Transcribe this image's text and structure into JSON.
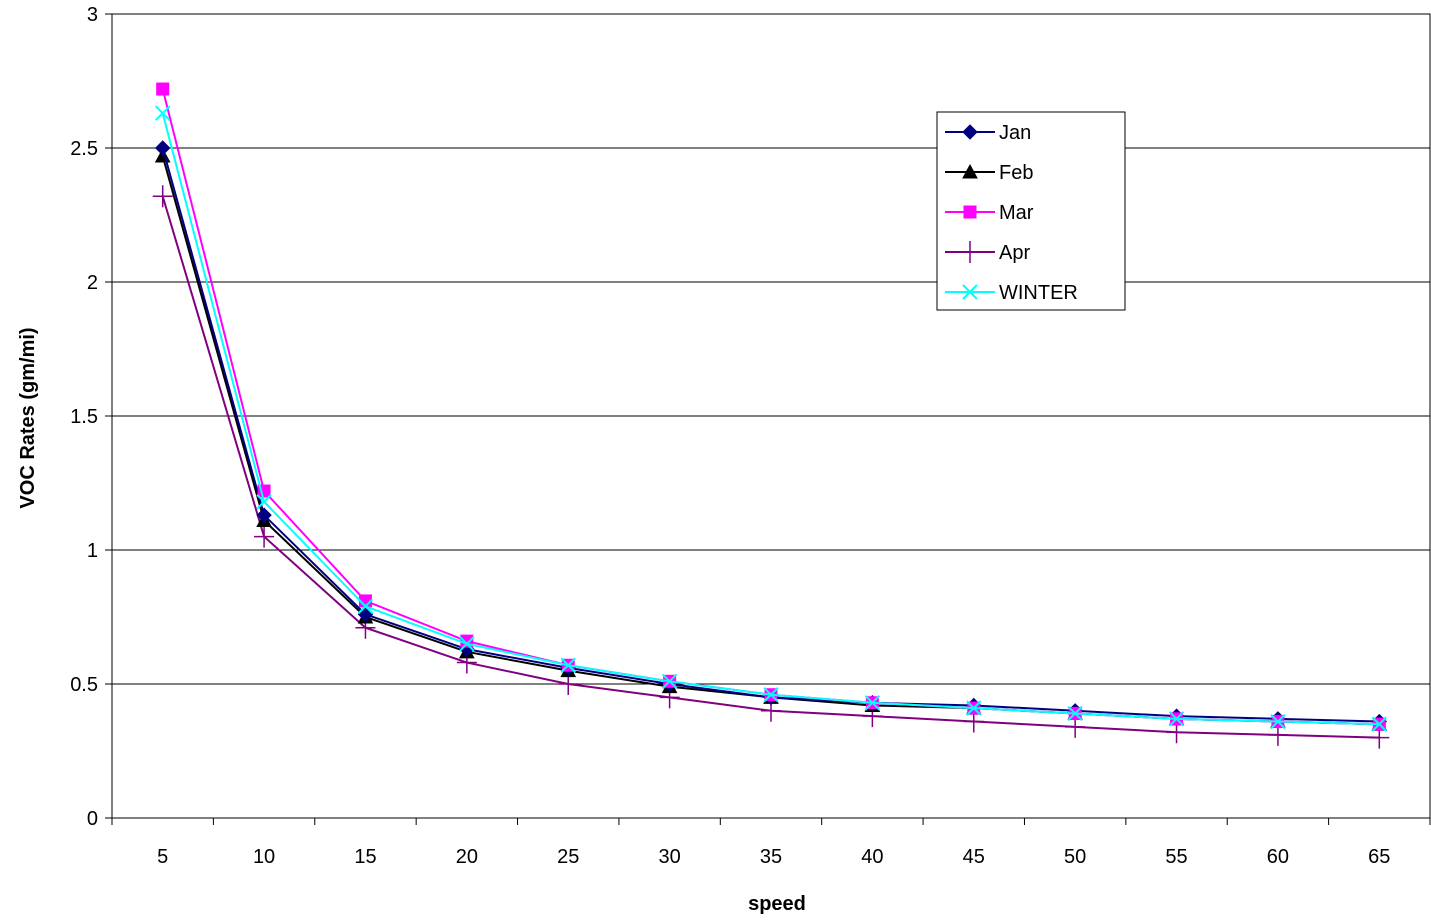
{
  "chart_data": {
    "type": "line",
    "title": "",
    "xlabel": "speed",
    "ylabel": "VOC Rates (gm/mi)",
    "categories": [
      "5",
      "10",
      "15",
      "20",
      "25",
      "30",
      "35",
      "40",
      "45",
      "50",
      "55",
      "60",
      "65"
    ],
    "ylim": [
      0,
      3
    ],
    "yticks": [
      "0",
      "0.5",
      "1",
      "1.5",
      "2",
      "2.5",
      "3"
    ],
    "grid": "horizontal",
    "legend_position": "upper-right",
    "series": [
      {
        "name": "Jan",
        "color": "#000080",
        "marker": "diamond",
        "values": [
          2.5,
          1.13,
          0.76,
          0.63,
          0.56,
          0.5,
          0.45,
          0.43,
          0.42,
          0.4,
          0.38,
          0.37,
          0.36
        ]
      },
      {
        "name": "Feb",
        "color": "#000000",
        "marker": "triangle",
        "values": [
          2.47,
          1.11,
          0.75,
          0.62,
          0.55,
          0.49,
          0.45,
          0.42,
          0.41,
          0.39,
          0.37,
          0.36,
          0.35
        ]
      },
      {
        "name": "Mar",
        "color": "#FF00FF",
        "marker": "square",
        "values": [
          2.72,
          1.22,
          0.81,
          0.66,
          0.57,
          0.51,
          0.46,
          0.43,
          0.41,
          0.39,
          0.37,
          0.36,
          0.35
        ]
      },
      {
        "name": "Apr",
        "color": "#800080",
        "marker": "plus",
        "values": [
          2.32,
          1.05,
          0.71,
          0.58,
          0.5,
          0.45,
          0.4,
          0.38,
          0.36,
          0.34,
          0.32,
          0.31,
          0.3
        ]
      },
      {
        "name": "WINTER",
        "color": "#00FFFF",
        "marker": "x",
        "values": [
          2.63,
          1.18,
          0.79,
          0.65,
          0.57,
          0.51,
          0.46,
          0.43,
          0.41,
          0.39,
          0.37,
          0.36,
          0.35
        ]
      }
    ]
  }
}
